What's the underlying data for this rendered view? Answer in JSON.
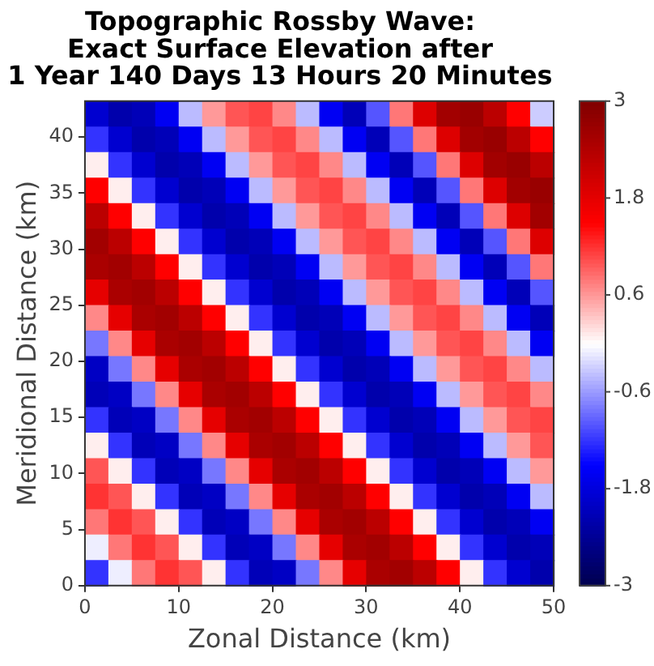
{
  "chart_data": {
    "type": "heatmap",
    "title": "Topographic Rossby Wave:\nExact Surface Elevation after\n1 Year 140 Days 13 Hours 20 Minutes",
    "xlabel": "Zonal Distance (km)",
    "ylabel": "Meridional Distance (km)",
    "xlim": [
      0,
      50
    ],
    "ylim": [
      0,
      43.2
    ],
    "xticks": [
      0,
      10,
      20,
      30,
      40,
      50
    ],
    "yticks": [
      0,
      5,
      10,
      15,
      20,
      25,
      30,
      35,
      40
    ],
    "clim": [
      -3,
      3
    ],
    "cticks": [
      -3,
      -1.8,
      -0.6,
      0.6,
      1.8,
      3
    ],
    "cells": [
      [
        -1.9,
        -2.2,
        -2.1,
        -1.6,
        -0.4,
        0.6,
        1,
        1.1,
        0.7,
        -0.4,
        -1.6,
        -2.1,
        -1,
        0.8,
        1.9,
        2.6,
        2.7,
        2.3,
        1.5,
        -0.3
      ],
      [
        -1.2,
        -1.9,
        -2.2,
        -2.1,
        -1.6,
        -0.4,
        0.6,
        1,
        1.1,
        0.7,
        -0.4,
        -1.6,
        -2.1,
        -1,
        0.8,
        1.9,
        2.6,
        2.7,
        2.3,
        1.5
      ],
      [
        0.1,
        -1.2,
        -1.9,
        -2.2,
        -2.1,
        -1.6,
        -0.4,
        0.6,
        1,
        1.1,
        0.7,
        -0.4,
        -1.6,
        -2.1,
        -1,
        0.8,
        1.9,
        2.6,
        2.7,
        2.3
      ],
      [
        1.5,
        0.1,
        -1.2,
        -1.9,
        -2.2,
        -2.1,
        -1.6,
        -0.4,
        0.6,
        1,
        1.1,
        0.7,
        -0.4,
        -1.6,
        -2.1,
        -1,
        0.8,
        1.9,
        2.6,
        2.7
      ],
      [
        2.3,
        1.5,
        0.1,
        -1.2,
        -1.9,
        -2.2,
        -2.1,
        -1.6,
        -0.4,
        0.6,
        1,
        1.1,
        0.7,
        -0.4,
        -1.6,
        -2.1,
        -1,
        0.8,
        1.9,
        2.6
      ],
      [
        2.6,
        2.3,
        1.5,
        0.1,
        -1.2,
        -1.9,
        -2.2,
        -2.1,
        -1.6,
        -0.4,
        0.6,
        1,
        1.1,
        0.7,
        -0.4,
        -1.6,
        -2.1,
        -1,
        0.8,
        1.9
      ],
      [
        2.5,
        2.6,
        2.3,
        1.5,
        0.1,
        -1.2,
        -1.9,
        -2.2,
        -2.1,
        -1.6,
        -0.4,
        0.6,
        1,
        1.1,
        0.7,
        -0.4,
        -1.6,
        -2.1,
        -1,
        0.8
      ],
      [
        1.8,
        2.5,
        2.6,
        2.3,
        1.5,
        0.1,
        -1.2,
        -1.9,
        -2.2,
        -2.1,
        -1.6,
        -0.4,
        0.6,
        1,
        1.1,
        0.7,
        -0.4,
        -1.6,
        -2.1,
        -1
      ],
      [
        0.7,
        1.8,
        2.5,
        2.6,
        2.3,
        1.5,
        0.1,
        -1.2,
        -1.9,
        -2.2,
        -2.1,
        -1.6,
        -0.4,
        0.6,
        1,
        1.1,
        0.7,
        -0.4,
        -1.6,
        -2.1
      ],
      [
        -0.8,
        0.7,
        1.8,
        2.5,
        2.6,
        2.3,
        1.5,
        0.1,
        -1.2,
        -1.9,
        -2.2,
        -2.1,
        -1.6,
        -0.4,
        0.6,
        1,
        1.1,
        0.7,
        -0.4,
        -1.6
      ],
      [
        -2,
        -0.8,
        0.7,
        1.8,
        2.5,
        2.6,
        2.3,
        1.5,
        0.1,
        -1.2,
        -1.9,
        -2.2,
        -2.1,
        -1.6,
        -0.4,
        0.6,
        1,
        1.1,
        0.7,
        -0.4
      ],
      [
        -2.1,
        -2,
        -0.8,
        0.7,
        1.8,
        2.5,
        2.6,
        2.3,
        1.5,
        0.1,
        -1.2,
        -1.9,
        -2.2,
        -2.1,
        -1.6,
        -0.4,
        0.6,
        1,
        1.1,
        0.7
      ],
      [
        -1.2,
        -2.1,
        -2,
        -0.8,
        0.7,
        1.8,
        2.5,
        2.6,
        2.3,
        1.5,
        0.1,
        -1.2,
        -1.9,
        -2.2,
        -2.1,
        -1.6,
        -0.4,
        0.6,
        1,
        1.1
      ],
      [
        0.1,
        -1.2,
        -2.1,
        -2,
        -0.8,
        0.7,
        1.8,
        2.5,
        2.6,
        2.3,
        1.5,
        0.1,
        -1.2,
        -1.9,
        -2.2,
        -2.1,
        -1.6,
        -0.4,
        0.6,
        1
      ],
      [
        1,
        0.1,
        -1.2,
        -2.1,
        -2,
        -0.8,
        0.7,
        1.8,
        2.5,
        2.6,
        2.3,
        1.5,
        0.1,
        -1.2,
        -1.9,
        -2.2,
        -2.1,
        -1.6,
        -0.4,
        0.6
      ],
      [
        1.2,
        1,
        0.1,
        -1.2,
        -2.1,
        -2,
        -0.8,
        0.7,
        1.8,
        2.5,
        2.6,
        2.3,
        1.5,
        0.1,
        -1.2,
        -1.9,
        -2.2,
        -2.1,
        -1.6,
        -0.4
      ],
      [
        0.8,
        1.2,
        1,
        0.1,
        -1.2,
        -2.1,
        -2,
        -0.8,
        0.7,
        1.8,
        2.5,
        2.6,
        2.3,
        1.5,
        0.1,
        -1.2,
        -1.9,
        -2.2,
        -2.1,
        -1.6
      ],
      [
        -0.1,
        0.8,
        1.2,
        1,
        0.1,
        -1.2,
        -2.1,
        -2,
        -0.8,
        0.7,
        1.8,
        2.5,
        2.6,
        2.3,
        1.5,
        0.1,
        -1.2,
        -1.9,
        -2.2,
        -2.1
      ],
      [
        -1.2,
        -0.1,
        0.8,
        1.2,
        1,
        0.1,
        -1.2,
        -2.1,
        -2,
        -0.8,
        0.7,
        1.8,
        2.5,
        2.6,
        2.3,
        1.5,
        0.1,
        -1.2,
        -1.9,
        -2.2
      ]
    ]
  }
}
